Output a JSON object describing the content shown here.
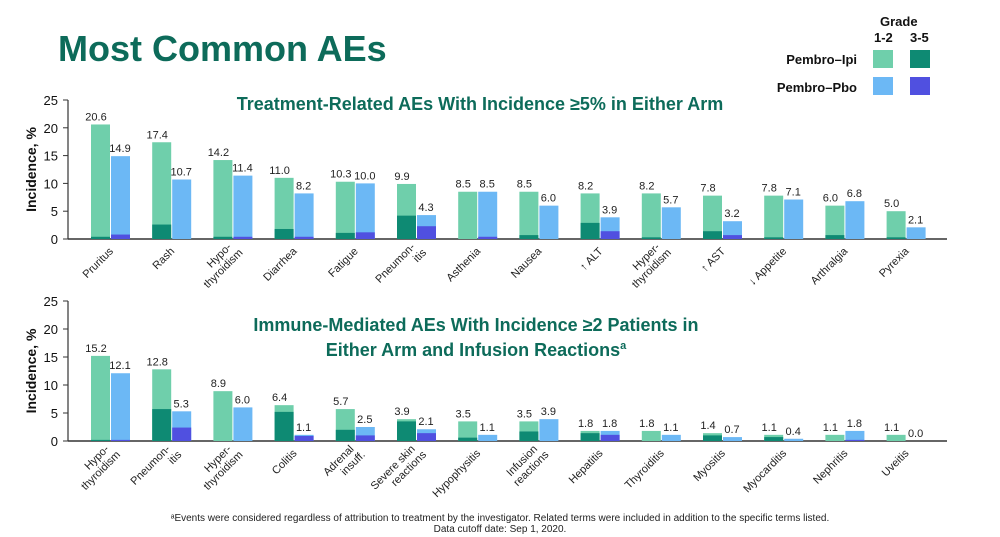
{
  "title": "Most Common AEs",
  "legend": {
    "grade_label": "Grade",
    "grade_low": "1-2",
    "grade_high": "3-5",
    "arms": [
      {
        "name": "Pembro–Ipi",
        "color_low": "#6fcfab",
        "color_high": "#0e8a73"
      },
      {
        "name": "Pembro–Pbo",
        "color_low": "#6cb8f5",
        "color_high": "#5050e0"
      }
    ]
  },
  "chart_data": [
    {
      "type": "bar",
      "stacked": true,
      "title": "Treatment-Related AEs With Incidence ≥5% in Either Arm",
      "ylabel": "Incidence, %",
      "ylim": [
        0,
        25
      ],
      "yticks": [
        0,
        5,
        10,
        15,
        20,
        25
      ],
      "categories": [
        [
          "Pruritus"
        ],
        [
          "Rash"
        ],
        [
          "Hypo-",
          "thyroidism"
        ],
        [
          "Diarrhea"
        ],
        [
          "Fatigue"
        ],
        [
          "Pneumon-",
          "itis"
        ],
        [
          "Asthenia"
        ],
        [
          "Nausea"
        ],
        [
          "↑ ALT"
        ],
        [
          "Hyper-",
          "thyroidism"
        ],
        [
          "↑ AST"
        ],
        [
          "↓ Appetite"
        ],
        [
          "Arthralgia"
        ],
        [
          "Pyrexia"
        ]
      ],
      "series": [
        {
          "name": "Pembro–Ipi",
          "total": [
            20.6,
            17.4,
            14.2,
            11.0,
            10.3,
            9.9,
            8.5,
            8.5,
            8.2,
            8.2,
            7.8,
            7.8,
            6.0,
            5.0
          ],
          "total_labels": [
            "20.6",
            "17.4",
            "14.2",
            "11.0",
            "10.3",
            "9.9",
            "8.5",
            "8.5",
            "8.2",
            "8.2",
            "7.8",
            "7.8",
            "6.0",
            "5.0"
          ],
          "grade_3_5": [
            0.4,
            2.6,
            0.4,
            1.8,
            1.1,
            4.2,
            0,
            0.7,
            2.9,
            0.3,
            1.4,
            0.3,
            0.7,
            0.3
          ]
        },
        {
          "name": "Pembro–Pbo",
          "total": [
            14.9,
            10.7,
            11.4,
            8.2,
            10.0,
            4.3,
            8.5,
            6.0,
            3.9,
            5.7,
            3.2,
            7.1,
            6.8,
            2.1
          ],
          "total_labels": [
            "14.9",
            "10.7",
            "11.4",
            "8.2",
            "10.0",
            "4.3",
            "8.5",
            "6.0",
            "3.9",
            "5.7",
            "3.2",
            "7.1",
            "6.8",
            "2.1"
          ],
          "grade_3_5": [
            0.8,
            0,
            0.4,
            0.4,
            1.2,
            2.3,
            0.4,
            0,
            1.4,
            0,
            0.7,
            0,
            0,
            0
          ]
        }
      ],
      "grid": false
    },
    {
      "type": "bar",
      "stacked": true,
      "title": [
        "Immune-Mediated AEs With Incidence ≥2 Patients in",
        "Either Arm and Infusion Reactions"
      ],
      "title_superscript": "a",
      "ylabel": "Incidence, %",
      "ylim": [
        0,
        25
      ],
      "yticks": [
        0,
        5,
        10,
        15,
        20,
        25
      ],
      "categories": [
        [
          "Hypo-",
          "thyroidism"
        ],
        [
          "Pneumon-",
          "itis"
        ],
        [
          "Hyper-",
          "thyroidism"
        ],
        [
          "Colitis"
        ],
        [
          "Adrenal",
          "insuff."
        ],
        [
          "Severe skin",
          "reactions"
        ],
        [
          "Hypophysitis"
        ],
        [
          "Infusion",
          "reactions"
        ],
        [
          "Hepatitis"
        ],
        [
          "Thyroiditis"
        ],
        [
          "Myositis"
        ],
        [
          "Myocarditis"
        ],
        [
          "Nephritis"
        ],
        [
          "Uveitis"
        ]
      ],
      "series": [
        {
          "name": "Pembro–Ipi",
          "total": [
            15.2,
            12.8,
            8.9,
            6.4,
            5.7,
            3.9,
            3.5,
            3.5,
            1.8,
            1.8,
            1.4,
            1.1,
            1.1,
            1.1
          ],
          "total_labels": [
            "15.2",
            "12.8",
            "8.9",
            "6.4",
            "5.7",
            "3.9",
            "3.5",
            "3.5",
            "1.8",
            "1.8",
            "1.4",
            "1.1",
            "1.1",
            "1.1"
          ],
          "grade_3_5": [
            0.2,
            5.7,
            0,
            5.2,
            2.0,
            3.5,
            0.6,
            1.7,
            1.4,
            0,
            1.0,
            0.7,
            0,
            0
          ]
        },
        {
          "name": "Pembro–Pbo",
          "total": [
            12.1,
            5.3,
            6.0,
            1.1,
            2.5,
            2.1,
            1.1,
            3.9,
            1.8,
            1.1,
            0.7,
            0.4,
            1.8,
            0.0
          ],
          "total_labels": [
            "12.1",
            "5.3",
            "6.0",
            "1.1",
            "2.5",
            "2.1",
            "1.1",
            "3.9",
            "1.8",
            "1.1",
            "0.7",
            "0.4",
            "1.8",
            "0.0"
          ],
          "grade_3_5": [
            0.2,
            2.4,
            0,
            0.9,
            1.0,
            1.4,
            0,
            0,
            1.1,
            0,
            0,
            0,
            0.2,
            0
          ]
        }
      ],
      "grid": false
    }
  ],
  "footnote": {
    "line1": "ᵃEvents were considered regardless of attribution to treatment by the investigator. Related terms were included in addition to the specific terms listed.",
    "line2": "Data cutoff date: Sep 1, 2020."
  }
}
